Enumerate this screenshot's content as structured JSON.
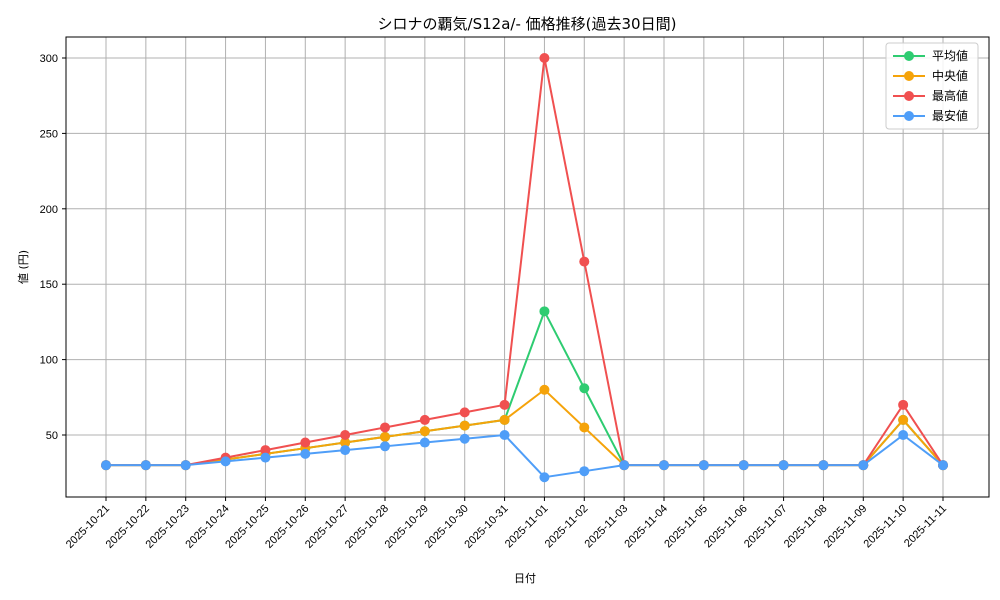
{
  "chart_data": {
    "type": "line",
    "title": "シロナの覇気/S12a/- 価格推移(過去30日間)",
    "xlabel": "日付",
    "ylabel": "値 (円)",
    "ylim": [
      9,
      314
    ],
    "yticks": [
      50,
      100,
      150,
      200,
      250,
      300
    ],
    "grid": true,
    "legend_position": "upper right",
    "categories": [
      "2025-10-21",
      "2025-10-22",
      "2025-10-23",
      "2025-10-24",
      "2025-10-25",
      "2025-10-26",
      "2025-10-27",
      "2025-10-28",
      "2025-10-29",
      "2025-10-30",
      "2025-10-31",
      "2025-11-01",
      "2025-11-02",
      "2025-11-03",
      "2025-11-04",
      "2025-11-05",
      "2025-11-06",
      "2025-11-07",
      "2025-11-08",
      "2025-11-09",
      "2025-11-10",
      "2025-11-11"
    ],
    "series": [
      {
        "name": "平均値",
        "color": "#2ecc71",
        "values": [
          30,
          30,
          30,
          33.75,
          37.5,
          41.25,
          45,
          48.75,
          52.5,
          56.25,
          60,
          132,
          81,
          30,
          30,
          30,
          30,
          30,
          30,
          30,
          60,
          30
        ]
      },
      {
        "name": "中央値",
        "color": "#f5a30a",
        "values": [
          30,
          30,
          30,
          33.75,
          37.5,
          41.25,
          45,
          48.75,
          52.5,
          56.25,
          60,
          80,
          55,
          30,
          30,
          30,
          30,
          30,
          30,
          30,
          60,
          30
        ]
      },
      {
        "name": "最高値",
        "color": "#f05050",
        "values": [
          30,
          30,
          30,
          35,
          40,
          45,
          50,
          55,
          60,
          65,
          70,
          300,
          165,
          30,
          30,
          30,
          30,
          30,
          30,
          30,
          70,
          30
        ]
      },
      {
        "name": "最安値",
        "color": "#4f9ef8",
        "values": [
          30,
          30,
          30,
          32.5,
          35,
          37.5,
          40,
          42.5,
          45,
          47.5,
          50,
          22,
          26,
          30,
          30,
          30,
          30,
          30,
          30,
          30,
          50,
          30
        ]
      }
    ]
  }
}
